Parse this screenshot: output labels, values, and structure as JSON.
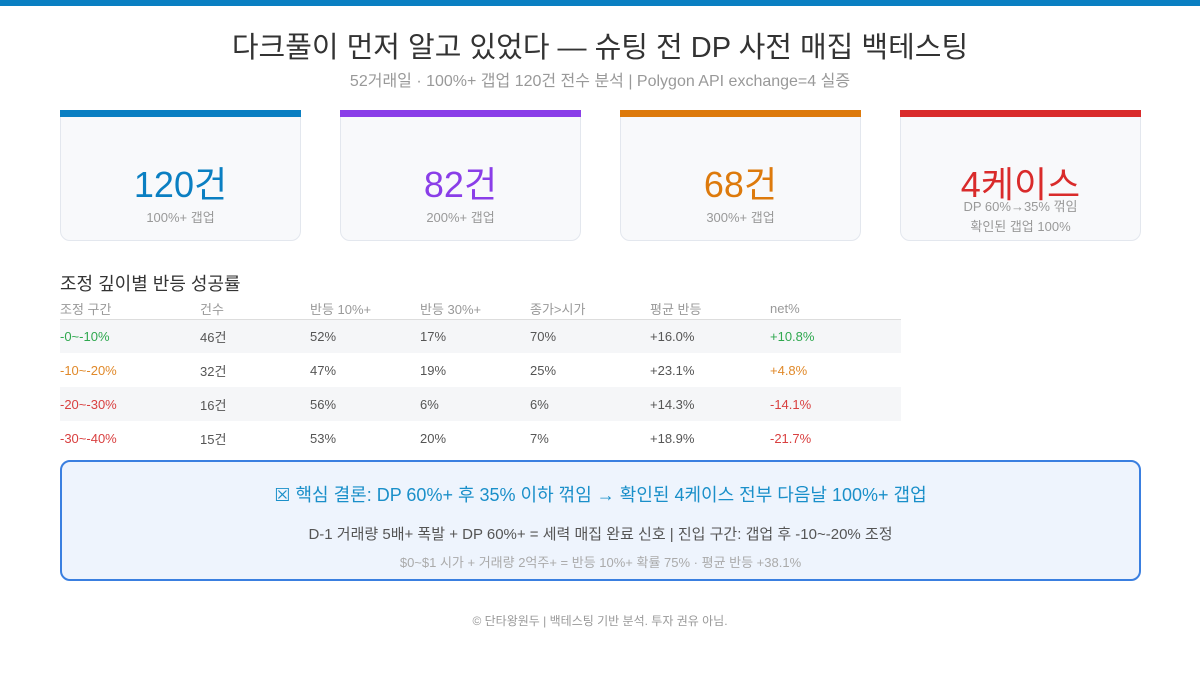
{
  "header": {
    "title": "다크풀이 먼저 알고 있었다 — 슈팅 전 DP 사전 매집 백테스팅",
    "subtitle": "52거래일 · 100%+ 갭업 120건 전수 분석 | Polygon API exchange=4 실증"
  },
  "cards": [
    {
      "value": "120건",
      "label": [
        "100%+ 갭업"
      ],
      "color": "#0a7fc2"
    },
    {
      "value": "82건",
      "label": [
        "200%+ 갭업"
      ],
      "color": "#8a3ee8"
    },
    {
      "value": "68건",
      "label": [
        "300%+ 갭업"
      ],
      "color": "#dd7a0c"
    },
    {
      "value": "4케이스",
      "label": [
        "DP 60%→35% 꺾임",
        "확인된 갭업 100%"
      ],
      "color": "#d92b2b"
    }
  ],
  "table": {
    "title": "조정 깊이별 반등 성공률",
    "columns": [
      "조정 구간",
      "건수",
      "반등 10%+",
      "반등 30%+",
      "종가>시가",
      "평균 반등",
      "net%"
    ],
    "rows": [
      [
        "-0~-10%",
        "46건",
        "52%",
        "17%",
        "70%",
        "+16.0%",
        "+10.8%"
      ],
      [
        "-10~-20%",
        "32건",
        "47%",
        "19%",
        "25%",
        "+23.1%",
        "+4.8%"
      ],
      [
        "-20~-30%",
        "16건",
        "56%",
        "6%",
        "6%",
        "+14.3%",
        "-14.1%"
      ],
      [
        "-30~-40%",
        "15건",
        "53%",
        "20%",
        "7%",
        "+18.9%",
        "-21.7%"
      ]
    ],
    "row_colors": [
      "#2fa84f",
      "#e0892a",
      "#d94040",
      "#d94040"
    ]
  },
  "conclusion": {
    "title": "☒ 핵심 결론: DP 60%+ 후 35% 이하 꺾임 → 확인된 4케이스 전부 다음날 100%+ 갭업",
    "line1": "D-1 거래량 5배+ 폭발 + DP 60%+ = 세력 매집 완료 신호 | 진입 구간: 갭업 후 -10~-20% 조정",
    "line2": "$0~$1 시가 + 거래량 2억주+ = 반등 10%+ 확률 75% · 평균 반등 +38.1%"
  },
  "footer": "© 단타왕원두 | 백테스팅 기반 분석. 투자 권유 아님."
}
